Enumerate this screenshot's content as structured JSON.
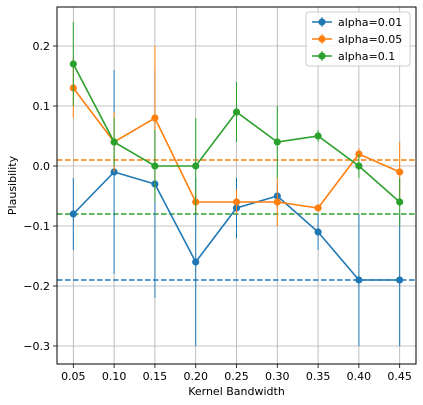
{
  "chart_data": {
    "type": "line",
    "xlabel": "Kernel Bandwidth",
    "ylabel": "Plausibility",
    "x": [
      0.05,
      0.1,
      0.15,
      0.2,
      0.25,
      0.3,
      0.35,
      0.4,
      0.45
    ],
    "x_tick_labels": [
      "0.05",
      "0.10",
      "0.15",
      "0.20",
      "0.25",
      "0.30",
      "0.35",
      "0.40",
      "0.45"
    ],
    "xlim": [
      0.03,
      0.47
    ],
    "ylim": [
      -0.33,
      0.265
    ],
    "y_ticks": [
      0.2,
      0.1,
      0.0,
      -0.1,
      -0.2,
      -0.3
    ],
    "y_tick_labels": [
      "0.2",
      "0.1",
      "0.0",
      "−0.1",
      "−0.2",
      "−0.3"
    ],
    "grid": true,
    "legend_position": "top-right",
    "series": [
      {
        "name": "alpha=0.01",
        "color": "#1f77b4",
        "values": [
          -0.08,
          -0.01,
          -0.03,
          -0.16,
          -0.07,
          -0.05,
          -0.11,
          -0.19,
          -0.19
        ],
        "err": [
          0.06,
          0.17,
          0.19,
          0.14,
          0.05,
          0.02,
          0.03,
          0.11,
          0.11
        ],
        "baseline": -0.19
      },
      {
        "name": "alpha=0.05",
        "color": "#ff7f0e",
        "values": [
          0.13,
          0.04,
          0.08,
          -0.06,
          -0.06,
          -0.06,
          -0.07,
          0.02,
          -0.01
        ],
        "err": [
          0.05,
          0.05,
          0.12,
          0.02,
          0.02,
          0.04,
          0.005,
          0.01,
          0.05
        ],
        "baseline": 0.01
      },
      {
        "name": "alpha=0.1",
        "color": "#2ca02c",
        "values": [
          0.17,
          0.04,
          0.0,
          0.0,
          0.09,
          0.04,
          0.05,
          0.0,
          -0.06
        ],
        "err": [
          0.07,
          0.04,
          0.06,
          0.08,
          0.05,
          0.06,
          0.01,
          0.02,
          0.04
        ],
        "baseline": -0.08
      }
    ]
  }
}
